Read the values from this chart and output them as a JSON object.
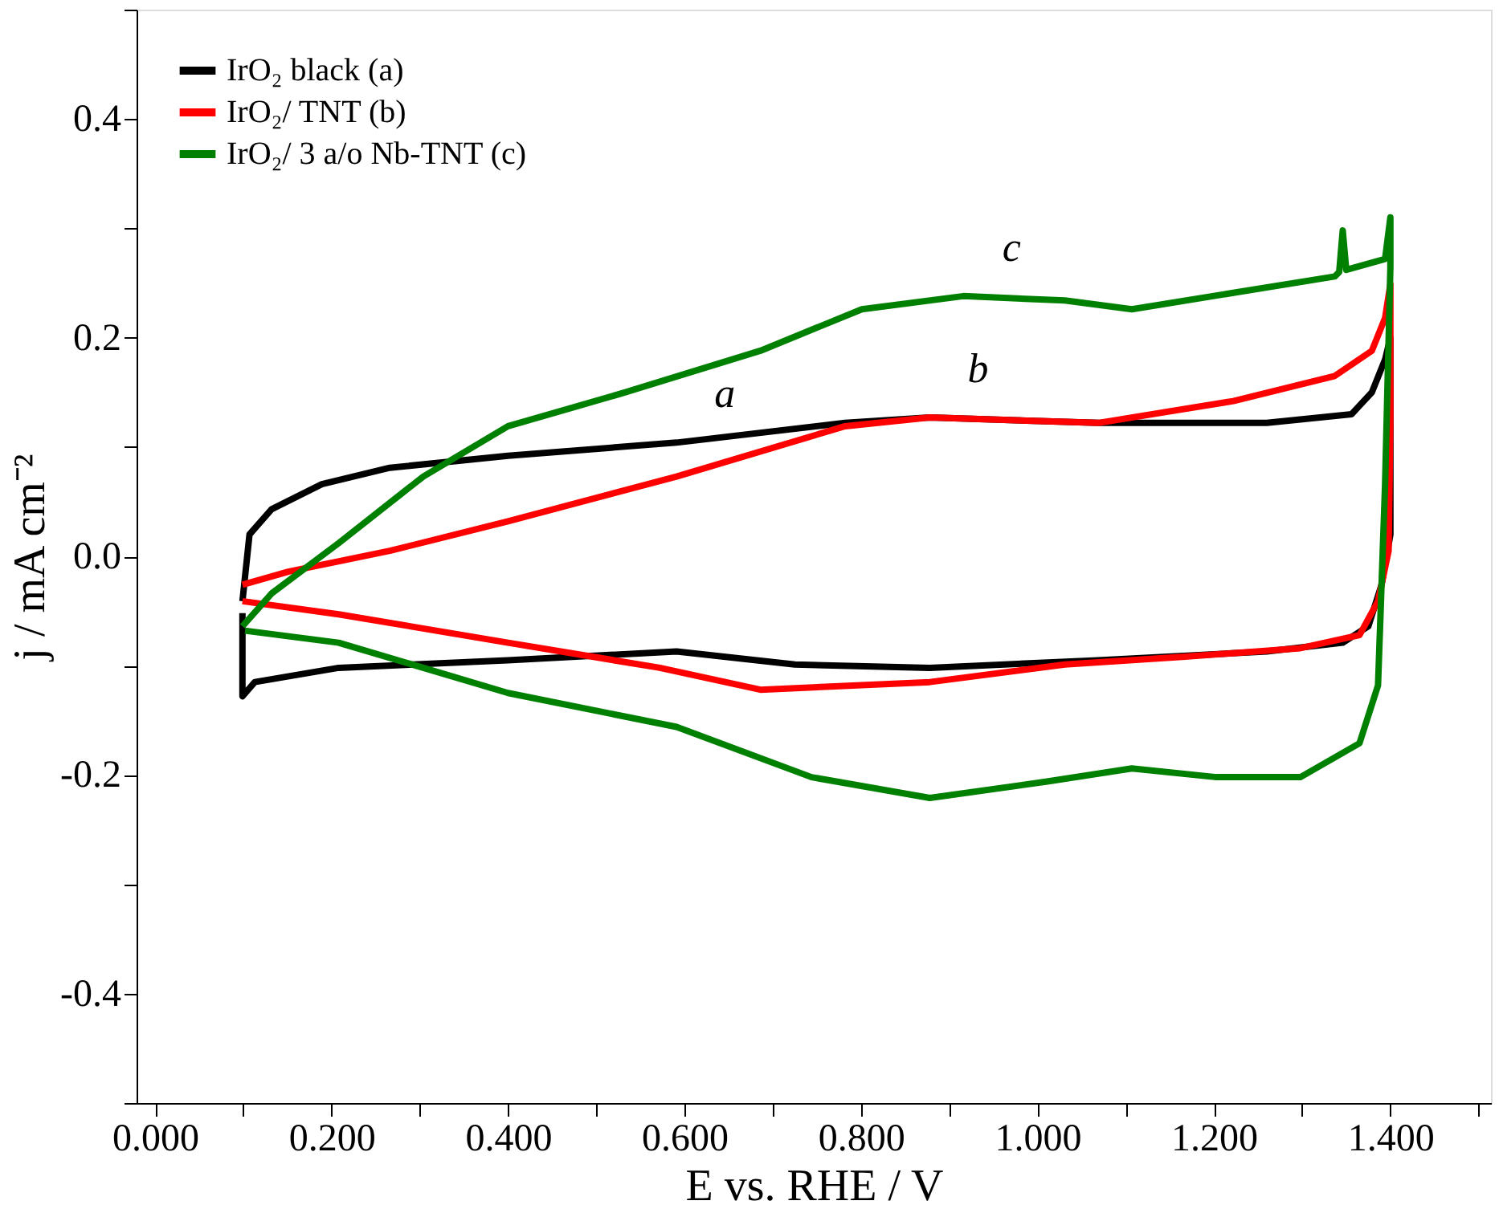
{
  "chart_data": {
    "type": "line",
    "xlabel": "E vs. RHE / V",
    "ylabel": "j / mA cm⁻²",
    "xlim": [
      -0.021,
      1.514
    ],
    "ylim": [
      -0.5,
      0.5
    ],
    "xticks": [
      {
        "value": 0,
        "label": "0.000"
      },
      {
        "value": 0.1,
        "label": null
      },
      {
        "value": 0.2,
        "label": "0.200"
      },
      {
        "value": 0.3,
        "label": null
      },
      {
        "value": 0.4,
        "label": "0.400"
      },
      {
        "value": 0.5,
        "label": null
      },
      {
        "value": 0.6,
        "label": "0.600"
      },
      {
        "value": 0.7,
        "label": null
      },
      {
        "value": 0.8,
        "label": "0.800"
      },
      {
        "value": 0.9,
        "label": null
      },
      {
        "value": 1.0,
        "label": "1.000"
      },
      {
        "value": 1.1,
        "label": null
      },
      {
        "value": 1.2,
        "label": "1.200"
      },
      {
        "value": 1.3,
        "label": null
      },
      {
        "value": 1.4,
        "label": "1.400"
      },
      {
        "value": 1.5,
        "label": null
      }
    ],
    "yticks": [
      {
        "value": -0.5,
        "label": null
      },
      -0.4,
      {
        "value": -0.3,
        "label": null
      },
      -0.2,
      {
        "value": -0.1,
        "label": null
      },
      {
        "value": 0,
        "label": "0.0"
      },
      {
        "value": 0.1,
        "label": null
      },
      0.2,
      {
        "value": 0.3,
        "label": null
      },
      0.4,
      {
        "value": 0.5,
        "label": null
      }
    ],
    "grid": false,
    "legend": "top left",
    "marker": "none",
    "line_style": "solid",
    "series": [
      {
        "name": "IrO₂ black (a)",
        "color": "#000000",
        "x": [
          0.099,
          0.107,
          0.132,
          0.189,
          0.266,
          0.4,
          0.591,
          0.782,
          0.878,
          1.069,
          1.26,
          1.356,
          1.379,
          1.394,
          1.4,
          1.4,
          1.39,
          1.375,
          1.346,
          1.26,
          1.069,
          0.878,
          0.725,
          0.591,
          0.4,
          0.208,
          0.113,
          0.099,
          0.099
        ],
        "values": [
          -0.041,
          0.02,
          0.043,
          0.066,
          0.081,
          0.092,
          0.104,
          0.122,
          0.127,
          0.122,
          0.122,
          0.13,
          0.15,
          0.18,
          0.2,
          0.02,
          -0.026,
          -0.064,
          -0.079,
          -0.087,
          -0.095,
          -0.102,
          -0.099,
          -0.087,
          -0.095,
          -0.102,
          -0.115,
          -0.128,
          -0.052
        ]
      },
      {
        "name": "IrO₂/ TNT (b)",
        "color": "#ff0000",
        "x": [
          0.099,
          0.151,
          0.266,
          0.4,
          0.591,
          0.782,
          0.878,
          1.069,
          1.222,
          1.337,
          1.379,
          1.394,
          1.4,
          1.4,
          1.398,
          1.386,
          1.365,
          1.298,
          1.164,
          1.031,
          0.878,
          0.686,
          0.572,
          0.4,
          0.208,
          0.099
        ],
        "values": [
          -0.026,
          -0.014,
          0.005,
          0.032,
          0.073,
          0.119,
          0.127,
          0.122,
          0.142,
          0.165,
          0.188,
          0.218,
          0.249,
          0.127,
          0.005,
          -0.041,
          -0.072,
          -0.084,
          -0.092,
          -0.099,
          -0.115,
          -0.122,
          -0.102,
          -0.079,
          -0.053,
          -0.041
        ]
      },
      {
        "name": "IrO₂/ 3 a/o Nb-TNT (c)",
        "color": "#008000",
        "x": [
          0.099,
          0.132,
          0.208,
          0.304,
          0.4,
          0.533,
          0.686,
          0.801,
          0.916,
          1.031,
          1.107,
          1.222,
          1.337,
          1.342,
          1.346,
          1.35,
          1.394,
          1.4,
          1.4,
          1.394,
          1.386,
          1.365,
          1.298,
          1.203,
          1.107,
          1.011,
          0.878,
          0.744,
          0.591,
          0.4,
          0.208,
          0.102
        ],
        "values": [
          -0.064,
          -0.034,
          0.012,
          0.073,
          0.119,
          0.15,
          0.188,
          0.226,
          0.238,
          0.234,
          0.226,
          0.241,
          0.256,
          0.26,
          0.298,
          0.262,
          0.272,
          0.31,
          0.264,
          0.066,
          -0.118,
          -0.171,
          -0.202,
          -0.202,
          -0.194,
          -0.206,
          -0.221,
          -0.202,
          -0.156,
          -0.125,
          -0.079,
          -0.068
        ]
      }
    ],
    "annotations": [
      {
        "text": "a",
        "x": 0.591,
        "y": 0.104
      },
      {
        "text": "b",
        "x": 0.878,
        "y": 0.127
      },
      {
        "text": "c",
        "x": 0.916,
        "y": 0.238
      }
    ]
  }
}
